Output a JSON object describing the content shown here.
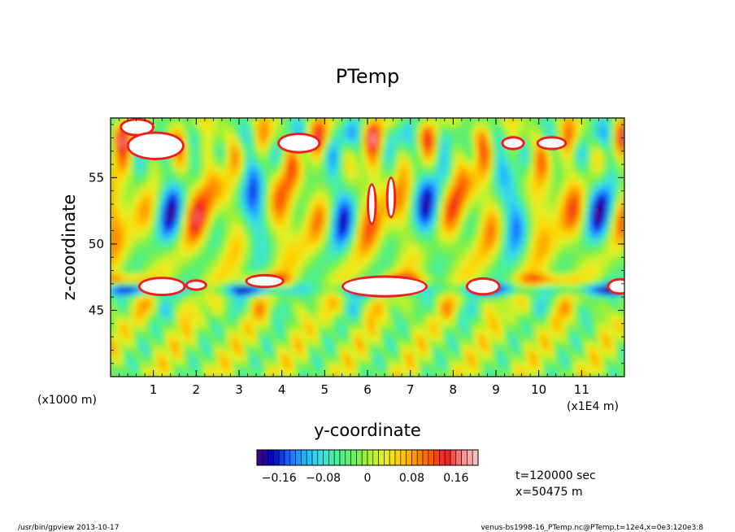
{
  "chart_data": {
    "type": "heatmap",
    "title": "PTemp",
    "xlabel": "y-coordinate",
    "ylabel": "z-coordinate",
    "x_unit_left": "(x1000 m)",
    "x_unit_right": "(x1E4 m)",
    "x_ticks": [
      "1",
      "2",
      "3",
      "4",
      "5",
      "6",
      "7",
      "8",
      "9",
      "10",
      "11"
    ],
    "xlim": [
      0,
      12
    ],
    "y_ticks": [
      "45",
      "50",
      "55"
    ],
    "ylim": [
      40,
      59.5
    ],
    "colorbar": {
      "ticks": [
        -0.16,
        -0.08,
        0,
        0.08,
        0.16
      ],
      "tick_labels": [
        "−0.16",
        "−0.08",
        "0",
        "0.08",
        "0.16"
      ],
      "range": [
        -0.2,
        0.2
      ],
      "levels": 40,
      "colors": [
        "#4b0082",
        "#0000c8",
        "#1e64ff",
        "#1eb4ff",
        "#3cdce6",
        "#46f0a0",
        "#64f064",
        "#a0f032",
        "#e6f028",
        "#ffd200",
        "#ff9600",
        "#ff5a00",
        "#f01e1e",
        "#ff8c8c",
        "#f5c8c8"
      ]
    },
    "white_above": 0.2,
    "grid": false
  },
  "annotations": {
    "time": "t=120000 sec",
    "position": "x=50475 m"
  },
  "footer": {
    "left": "/usr/bin/gpview  2013-10-17",
    "right": "venus-bs1998-16_PTemp.nc@PTemp,t=12e4,x=0e3:120e3:8"
  }
}
